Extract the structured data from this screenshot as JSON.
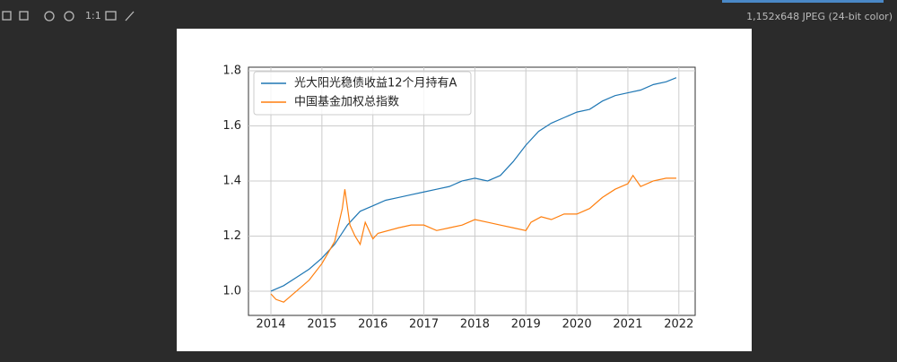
{
  "toolbar": {
    "zoom_label": "1:1",
    "image_info": "1,152x648 JPEG (24-bit color)"
  },
  "chart_data": {
    "type": "line",
    "legend": "upper left",
    "grid": true,
    "xlim": [
      2013.56,
      2022.32
    ],
    "xticks": [
      2014,
      2015,
      2016,
      2017,
      2018,
      2019,
      2020,
      2021,
      2022
    ],
    "ylim": [
      0.912,
      1.813
    ],
    "yticks": [
      {
        "value": 1,
        "label": "1.0"
      },
      1.2,
      1.4,
      1.6,
      1.8
    ],
    "series": [
      {
        "name": "光大阳光稳债收益12个月持有A",
        "color": "#1f77b4",
        "x": [
          2014.0,
          2014.25,
          2014.5,
          2014.75,
          2015.0,
          2015.25,
          2015.5,
          2015.75,
          2016.0,
          2016.25,
          2016.5,
          2016.75,
          2017.0,
          2017.25,
          2017.5,
          2017.75,
          2018.0,
          2018.25,
          2018.5,
          2018.75,
          2019.0,
          2019.25,
          2019.5,
          2019.75,
          2020.0,
          2020.25,
          2020.5,
          2020.75,
          2021.0,
          2021.25,
          2021.5,
          2021.75,
          2021.95
        ],
        "values": [
          1.0,
          1.02,
          1.05,
          1.08,
          1.12,
          1.17,
          1.24,
          1.29,
          1.31,
          1.33,
          1.34,
          1.35,
          1.36,
          1.37,
          1.38,
          1.4,
          1.41,
          1.4,
          1.42,
          1.47,
          1.53,
          1.58,
          1.61,
          1.63,
          1.65,
          1.66,
          1.69,
          1.71,
          1.72,
          1.73,
          1.75,
          1.76,
          1.775
        ]
      },
      {
        "name": "中国基金加权总指数",
        "color": "#ff7f0e",
        "x": [
          2014.0,
          2014.1,
          2014.25,
          2014.5,
          2014.75,
          2015.0,
          2015.25,
          2015.4,
          2015.45,
          2015.55,
          2015.65,
          2015.75,
          2015.85,
          2016.0,
          2016.1,
          2016.5,
          2016.75,
          2017.0,
          2017.25,
          2017.5,
          2017.75,
          2018.0,
          2018.25,
          2018.5,
          2018.75,
          2019.0,
          2019.1,
          2019.3,
          2019.5,
          2019.75,
          2020.0,
          2020.25,
          2020.5,
          2020.75,
          2021.0,
          2021.1,
          2021.25,
          2021.5,
          2021.75,
          2021.95
        ],
        "values": [
          0.99,
          0.97,
          0.96,
          1.0,
          1.04,
          1.1,
          1.18,
          1.3,
          1.37,
          1.24,
          1.2,
          1.17,
          1.25,
          1.19,
          1.21,
          1.23,
          1.24,
          1.24,
          1.22,
          1.23,
          1.24,
          1.26,
          1.25,
          1.24,
          1.23,
          1.22,
          1.25,
          1.27,
          1.26,
          1.28,
          1.28,
          1.3,
          1.34,
          1.37,
          1.39,
          1.42,
          1.38,
          1.4,
          1.41,
          1.41
        ]
      }
    ]
  }
}
